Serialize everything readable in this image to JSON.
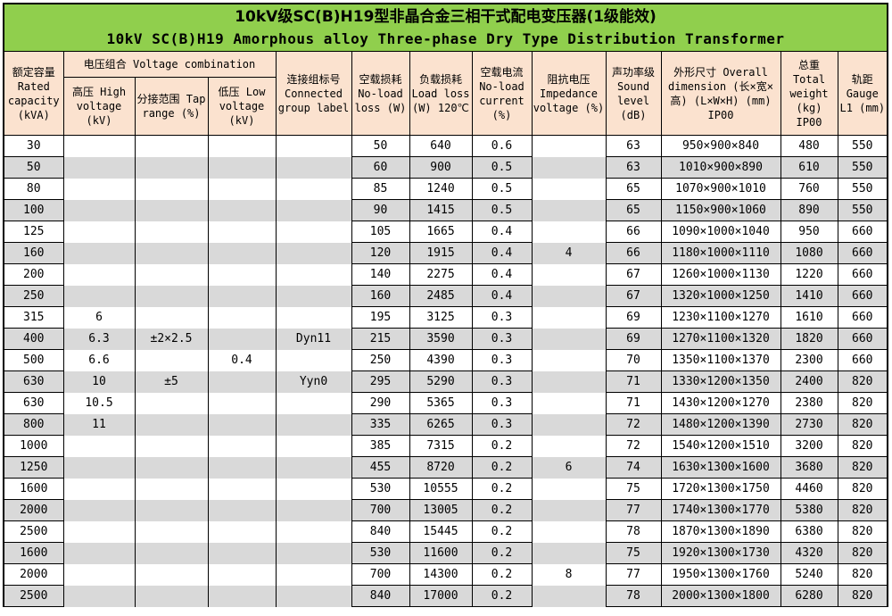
{
  "title": {
    "zh": "10kV级SC(B)H19型非晶合金三相干式配电变压器(1级能效)",
    "en": "10kV SC(B)H19 Amorphous alloy Three-phase Dry Type Distribution Transformer"
  },
  "headers": {
    "capacity": "额定容量 Rated capacity (kVA)",
    "voltage_combination": "电压组合 Voltage combination",
    "high_voltage": "高压 High voltage (kV)",
    "tap_range": "分接范围 Tap range (%)",
    "low_voltage": "低压 Low voltage (kV)",
    "connected_group": "连接组标号 Connected group label",
    "no_load_loss": "空载损耗 No-load loss (W)",
    "load_loss": "负载损耗 Load loss (W) 120℃",
    "no_load_current": "空载电流 No-load current (%)",
    "impedance_voltage": "阻抗电压 Impedance voltage (%)",
    "sound_level": "声功率级 Sound level (dB)",
    "overall_dimension": "外形尺寸 Overall dimension (长×宽×高) (L×W×H) (mm) IP00",
    "total_weight": "总重 Total weight (kg) IP00",
    "gauge": "轨距 Gauge L1 (mm)"
  },
  "colors": {
    "title_bg": "#90CF4D",
    "header_bg": "#FBE2CF",
    "stripe_bg": "#D9D9D9",
    "border": "#000000"
  },
  "row_keys": [
    "capacity",
    "hv",
    "tap",
    "lv",
    "group",
    "noload",
    "load",
    "current",
    "impedance",
    "sound",
    "dim",
    "weight",
    "gauge"
  ],
  "rows": [
    [
      "30",
      "",
      "",
      "",
      "",
      "50",
      "640",
      "0.6",
      "",
      "63",
      "950×900×840",
      "480",
      "550"
    ],
    [
      "50",
      "",
      "",
      "",
      "",
      "60",
      "900",
      "0.5",
      "",
      "63",
      "1010×900×890",
      "610",
      "550"
    ],
    [
      "80",
      "",
      "",
      "",
      "",
      "85",
      "1240",
      "0.5",
      "",
      "65",
      "1070×900×1010",
      "760",
      "550"
    ],
    [
      "100",
      "",
      "",
      "",
      "",
      "90",
      "1415",
      "0.5",
      "",
      "65",
      "1150×900×1060",
      "890",
      "550"
    ],
    [
      "125",
      "",
      "",
      "",
      "",
      "105",
      "1665",
      "0.4",
      "",
      "66",
      "1090×1000×1040",
      "950",
      "660"
    ],
    [
      "160",
      "",
      "",
      "",
      "",
      "120",
      "1915",
      "0.4",
      "4",
      "66",
      "1180×1000×1110",
      "1080",
      "660"
    ],
    [
      "200",
      "",
      "",
      "",
      "",
      "140",
      "2275",
      "0.4",
      "",
      "67",
      "1260×1000×1130",
      "1220",
      "660"
    ],
    [
      "250",
      "",
      "",
      "",
      "",
      "160",
      "2485",
      "0.4",
      "",
      "67",
      "1320×1000×1250",
      "1410",
      "660"
    ],
    [
      "315",
      "6",
      "",
      "",
      "",
      "195",
      "3125",
      "0.3",
      "",
      "69",
      "1230×1100×1270",
      "1610",
      "660"
    ],
    [
      "400",
      "6.3",
      "±2×2.5",
      "",
      "Dyn11",
      "215",
      "3590",
      "0.3",
      "",
      "69",
      "1270×1100×1320",
      "1820",
      "660"
    ],
    [
      "500",
      "6.6",
      "",
      "0.4",
      "",
      "250",
      "4390",
      "0.3",
      "",
      "70",
      "1350×1100×1370",
      "2300",
      "660"
    ],
    [
      "630",
      "10",
      "±5",
      "",
      "Yyn0",
      "295",
      "5290",
      "0.3",
      "",
      "71",
      "1330×1200×1350",
      "2400",
      "820"
    ],
    [
      "630",
      "10.5",
      "",
      "",
      "",
      "290",
      "5365",
      "0.3",
      "",
      "71",
      "1430×1200×1270",
      "2380",
      "820"
    ],
    [
      "800",
      "11",
      "",
      "",
      "",
      "335",
      "6265",
      "0.3",
      "",
      "72",
      "1480×1200×1390",
      "2730",
      "820"
    ],
    [
      "1000",
      "",
      "",
      "",
      "",
      "385",
      "7315",
      "0.2",
      "",
      "72",
      "1540×1200×1510",
      "3200",
      "820"
    ],
    [
      "1250",
      "",
      "",
      "",
      "",
      "455",
      "8720",
      "0.2",
      "6",
      "74",
      "1630×1300×1600",
      "3680",
      "820"
    ],
    [
      "1600",
      "",
      "",
      "",
      "",
      "530",
      "10555",
      "0.2",
      "",
      "75",
      "1720×1300×1750",
      "4460",
      "820"
    ],
    [
      "2000",
      "",
      "",
      "",
      "",
      "700",
      "13005",
      "0.2",
      "",
      "77",
      "1740×1300×1770",
      "5380",
      "820"
    ],
    [
      "2500",
      "",
      "",
      "",
      "",
      "840",
      "15445",
      "0.2",
      "",
      "78",
      "1870×1300×1890",
      "6380",
      "820"
    ],
    [
      "1600",
      "",
      "",
      "",
      "",
      "530",
      "11600",
      "0.2",
      "",
      "75",
      "1920×1300×1730",
      "4320",
      "820"
    ],
    [
      "2000",
      "",
      "",
      "",
      "",
      "700",
      "14300",
      "0.2",
      "8",
      "77",
      "1950×1300×1760",
      "5240",
      "820"
    ],
    [
      "2500",
      "",
      "",
      "",
      "",
      "840",
      "17000",
      "0.2",
      "",
      "78",
      "2000×1300×1800",
      "6280",
      "820"
    ]
  ]
}
